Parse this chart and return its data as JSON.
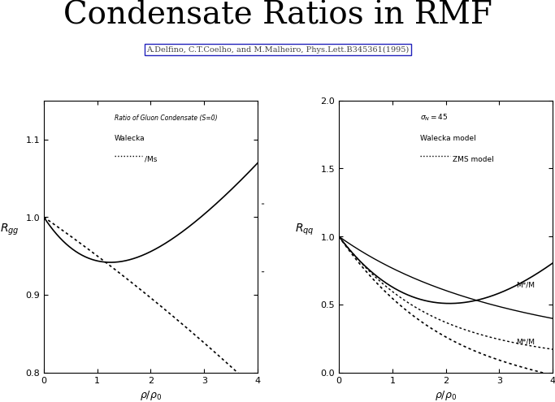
{
  "title": "Condensate Ratios in RMF",
  "citation": "A.Delfino, C.T.Coelho, and M.Malheiro, Phys.Lett.B345361(1995)",
  "bg_color": "#ffffff",
  "left_plot": {
    "xlabel": "\\u03c1/\\u03c1\\u2080",
    "xlim": [
      0,
      4
    ],
    "ylim": [
      0.8,
      1.15
    ],
    "yticks": [
      0.8,
      0.9,
      1.0,
      1.1
    ],
    "xticks": [
      0,
      1,
      2,
      3,
      4
    ],
    "annotation": "Ratio of Gluon Condensate (S=0)",
    "legend_solid": "Walecka",
    "legend_dashed": "/Ms"
  },
  "right_plot": {
    "xlabel": "\\u03c1/\\u03c1\\u2080",
    "xlim": [
      0,
      4
    ],
    "ylim": [
      0.0,
      2.0
    ],
    "yticks": [
      0.0,
      0.5,
      1.0,
      1.5,
      2.0
    ],
    "xticks": [
      0,
      1,
      2,
      3,
      4
    ],
    "annotation_sigma": "\\u03c3_N = 45",
    "legend_solid": "Walecka model",
    "legend_dashed": "ZMS model",
    "label_mstar_walecka": "M*/M",
    "label_mstar_zms": "M*/M"
  }
}
